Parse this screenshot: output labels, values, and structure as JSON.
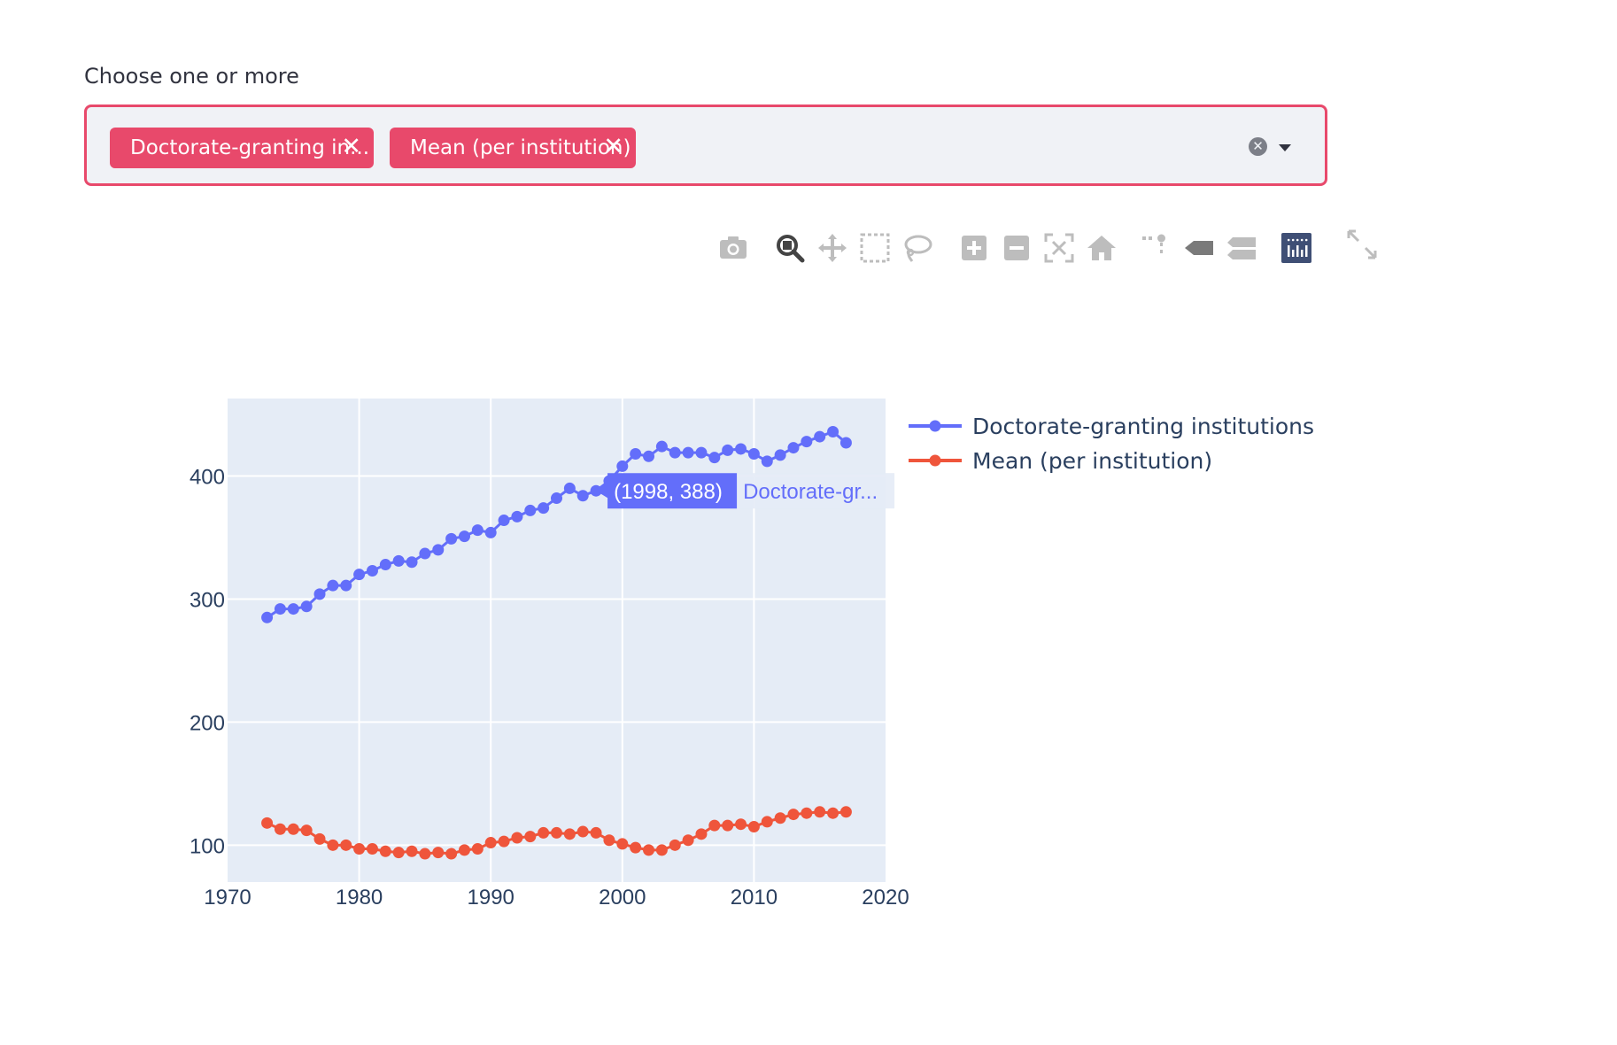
{
  "widget": {
    "label": "Choose one or more",
    "chips": [
      {
        "text": "Doctorate-granting in...",
        "close": "✕"
      },
      {
        "text": "Mean (per institution)",
        "close": "✕"
      }
    ],
    "clear_icon": "✕"
  },
  "modebar": [
    "camera-icon",
    "zoom-icon",
    "pan-icon",
    "box-select-icon",
    "lasso-select-icon",
    "zoom-in-icon",
    "zoom-out-icon",
    "autoscale-icon",
    "reset-axes-icon",
    "spike-lines-icon",
    "hover-closest-icon",
    "hover-compare-icon",
    "plotly-logo-icon",
    "fullscreen-icon"
  ],
  "colors": {
    "accent": "#e8496b",
    "series1": "#636efa",
    "series2": "#ef553b",
    "plot_bg": "#e5ecf6"
  },
  "tooltip": {
    "coords": "(1998, 388)",
    "name": "Doctorate-gr..."
  },
  "chart_data": {
    "type": "line",
    "xlim": [
      1970,
      2020
    ],
    "ylim": [
      70,
      463
    ],
    "xticks": [
      1970,
      1980,
      1990,
      2000,
      2010,
      2020
    ],
    "yticks": [
      100,
      200,
      300,
      400
    ],
    "grid": true,
    "legend_position": "top-right",
    "x": [
      1973,
      1974,
      1975,
      1976,
      1977,
      1978,
      1979,
      1980,
      1981,
      1982,
      1983,
      1984,
      1985,
      1986,
      1987,
      1988,
      1989,
      1990,
      1991,
      1992,
      1993,
      1994,
      1995,
      1996,
      1997,
      1998,
      1999,
      2000,
      2001,
      2002,
      2003,
      2004,
      2005,
      2006,
      2007,
      2008,
      2009,
      2010,
      2011,
      2012,
      2013,
      2014,
      2015,
      2016,
      2017
    ],
    "series": [
      {
        "name": "Doctorate-granting institutions",
        "color": "#636efa",
        "values": [
          285,
          292,
          292,
          294,
          304,
          311,
          311,
          320,
          323,
          328,
          331,
          330,
          337,
          340,
          349,
          351,
          356,
          354,
          364,
          367,
          372,
          374,
          382,
          390,
          384,
          388,
          396,
          408,
          418,
          416,
          424,
          419,
          419,
          419,
          415,
          421,
          422,
          418,
          412,
          417,
          423,
          428,
          432,
          436,
          427
        ]
      },
      {
        "name": "Mean (per institution)",
        "color": "#ef553b",
        "values": [
          118,
          113,
          113,
          112,
          105,
          100,
          100,
          97,
          97,
          95,
          94,
          95,
          93,
          94,
          93,
          96,
          97,
          102,
          103,
          106,
          107,
          110,
          110,
          109,
          111,
          110,
          104,
          101,
          98,
          96,
          96,
          100,
          104,
          109,
          116,
          116,
          117,
          115,
          119,
          122,
          125,
          126,
          127,
          126,
          127
        ]
      }
    ]
  }
}
